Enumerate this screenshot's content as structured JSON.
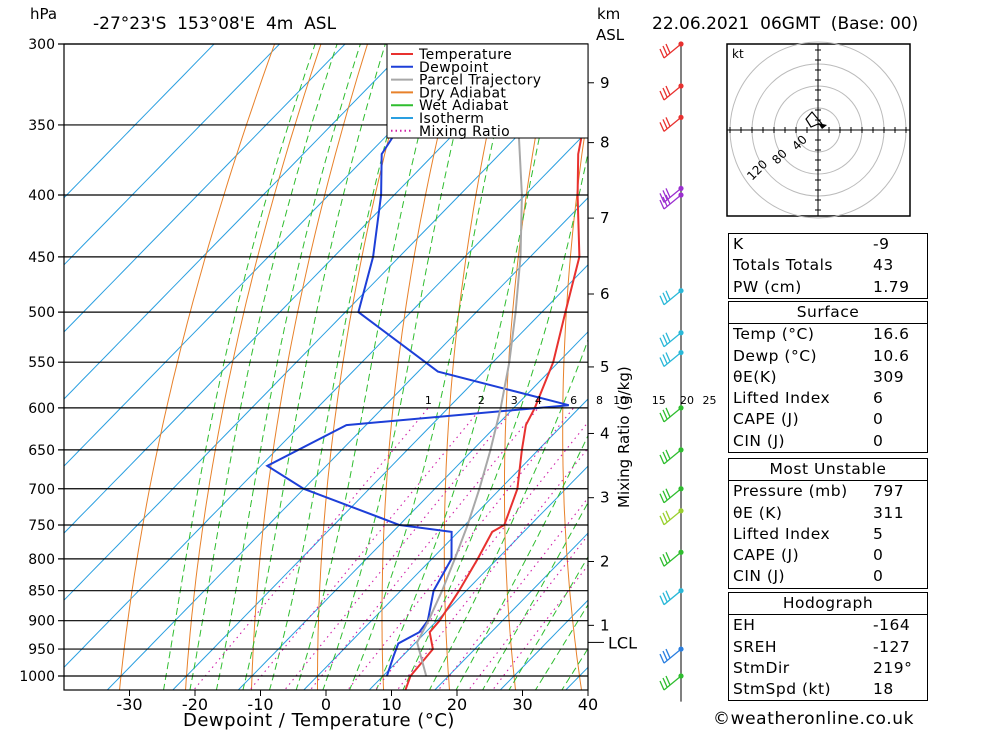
{
  "header": {
    "pressure_unit": "hPa",
    "location": "-27°23'S  153°08'E  4m  ASL",
    "height_unit_top": "km",
    "height_unit_bottom": "ASL",
    "datetime": "22.06.2021  06GMT  (Base: 00)"
  },
  "chart_data": {
    "type": "line",
    "title": "",
    "xlabel": "Dewpoint / Temperature (°C)",
    "ylabel": "hPa",
    "y_scale": "log-pressure",
    "xlim": [
      -40,
      40
    ],
    "ylim": [
      1050,
      300
    ],
    "x_ticks": [
      -30,
      -20,
      -10,
      0,
      10,
      20,
      30,
      40
    ],
    "pressure_levels": [
      300,
      350,
      400,
      450,
      500,
      550,
      600,
      650,
      700,
      750,
      800,
      850,
      900,
      950,
      1000
    ],
    "km_ticks": [
      {
        "km": "9",
        "p": 323
      },
      {
        "km": "8",
        "p": 362
      },
      {
        "km": "7",
        "p": 418
      },
      {
        "km": "6",
        "p": 483
      },
      {
        "km": "5",
        "p": 555
      },
      {
        "km": "4",
        "p": 630
      },
      {
        "km": "3",
        "p": 712
      },
      {
        "km": "2",
        "p": 804
      },
      {
        "km": "1",
        "p": 908
      }
    ],
    "lcl": {
      "label": "LCL",
      "p": 938
    },
    "mixing_ratio_axis_label": "Mixing Ratio (g/kg)",
    "mixing_ratio_labels": [
      "1",
      "2",
      "3",
      "4",
      "6",
      "8",
      "10",
      "15",
      "20",
      "25"
    ],
    "series": [
      {
        "name": "Temperature",
        "color": "#e8312f",
        "points": [
          [
            1050,
            16.6
          ],
          [
            1000,
            14.2
          ],
          [
            950,
            13.6
          ],
          [
            920,
            10.6
          ],
          [
            900,
            10.4
          ],
          [
            850,
            8.9
          ],
          [
            800,
            7.0
          ],
          [
            760,
            5.2
          ],
          [
            750,
            6.0
          ],
          [
            700,
            2.6
          ],
          [
            650,
            -2.5
          ],
          [
            620,
            -5.6
          ],
          [
            600,
            -6.8
          ],
          [
            550,
            -10.8
          ],
          [
            500,
            -16.4
          ],
          [
            450,
            -22.5
          ],
          [
            400,
            -32.0
          ],
          [
            370,
            -38.0
          ],
          [
            350,
            -41.5
          ],
          [
            300,
            -51.0
          ]
        ]
      },
      {
        "name": "Dewpoint",
        "color": "#1d3fd8",
        "points": [
          [
            1000,
            10.6
          ],
          [
            960,
            8.5
          ],
          [
            940,
            7.5
          ],
          [
            920,
            9.0
          ],
          [
            900,
            8.6
          ],
          [
            850,
            5.0
          ],
          [
            800,
            3.0
          ],
          [
            760,
            -1.0
          ],
          [
            750,
            -10.0
          ],
          [
            700,
            -30.0
          ],
          [
            670,
            -39.0
          ],
          [
            620,
            -33.0
          ],
          [
            597,
            -2.0
          ],
          [
            560,
            -27.0
          ],
          [
            500,
            -48.0
          ],
          [
            450,
            -54.0
          ],
          [
            400,
            -62.0
          ],
          [
            370,
            -68.0
          ],
          [
            330,
            -71.0
          ],
          [
            300,
            -75.0
          ]
        ]
      },
      {
        "name": "Parcel Trajectory",
        "color": "#a8a8a8",
        "points": [
          [
            1000,
            16.6
          ],
          [
            938,
            10.2
          ],
          [
            900,
            8.7
          ],
          [
            850,
            6.3
          ],
          [
            800,
            3.5
          ],
          [
            750,
            0.4
          ],
          [
            700,
            -3.2
          ],
          [
            650,
            -7.3
          ],
          [
            600,
            -12.0
          ],
          [
            550,
            -17.5
          ],
          [
            500,
            -24.0
          ],
          [
            450,
            -31.5
          ],
          [
            400,
            -40.5
          ],
          [
            350,
            -51.5
          ],
          [
            320,
            -59.0
          ]
        ]
      }
    ],
    "legend": [
      "Temperature",
      "Dewpoint",
      "Parcel Trajectory",
      "Dry Adiabat",
      "Wet Adiabat",
      "Isotherm",
      "Mixing Ratio"
    ],
    "legend_position": "top-right",
    "background_line_colors": {
      "dry_adiabat": "#e8812a",
      "wet_adiabat": "#2fbd2f",
      "isotherm": "#2a9fe0",
      "mixing_ratio": "#d020a8"
    },
    "wind_profile": [
      {
        "p": 300,
        "color": "#e8312f"
      },
      {
        "p": 325,
        "color": "#e8312f"
      },
      {
        "p": 345,
        "color": "#e8312f"
      },
      {
        "p": 395,
        "color": "#9b2fd0"
      },
      {
        "p": 400,
        "color": "#9b2fd0"
      },
      {
        "p": 480,
        "color": "#2ab8d8"
      },
      {
        "p": 520,
        "color": "#2ab8d8"
      },
      {
        "p": 540,
        "color": "#2ab8d8"
      },
      {
        "p": 600,
        "color": "#2fbd2f"
      },
      {
        "p": 650,
        "color": "#2fbd2f"
      },
      {
        "p": 700,
        "color": "#2fbd2f"
      },
      {
        "p": 730,
        "color": "#9ad02f"
      },
      {
        "p": 790,
        "color": "#2fbd2f"
      },
      {
        "p": 850,
        "color": "#2ab8d8"
      },
      {
        "p": 950,
        "color": "#2a7fe0"
      },
      {
        "p": 1000,
        "color": "#2fbd2f"
      }
    ]
  },
  "hodograph": {
    "unit": "kt",
    "ring_labels": [
      "40",
      "80",
      "120"
    ]
  },
  "indices": {
    "rows": [
      {
        "label": "K",
        "value": "-9"
      },
      {
        "label": "Totals Totals",
        "value": "43"
      },
      {
        "label": "PW (cm)",
        "value": "1.79"
      }
    ]
  },
  "surface": {
    "title": "Surface",
    "rows": [
      {
        "label": "Temp (°C)",
        "value": "16.6"
      },
      {
        "label": "Dewp (°C)",
        "value": "10.6"
      },
      {
        "label": "θE(K)",
        "value": "309"
      },
      {
        "label": "Lifted Index",
        "value": "6"
      },
      {
        "label": "CAPE (J)",
        "value": "0"
      },
      {
        "label": "CIN (J)",
        "value": "0"
      }
    ]
  },
  "most_unstable": {
    "title": "Most Unstable",
    "rows": [
      {
        "label": "Pressure (mb)",
        "value": "797"
      },
      {
        "label": "θE (K)",
        "value": "311"
      },
      {
        "label": "Lifted Index",
        "value": "5"
      },
      {
        "label": "CAPE (J)",
        "value": "0"
      },
      {
        "label": "CIN (J)",
        "value": "0"
      }
    ]
  },
  "hodograph_stats": {
    "title": "Hodograph",
    "rows": [
      {
        "label": "EH",
        "value": "-164"
      },
      {
        "label": "SREH",
        "value": "-127"
      },
      {
        "label": "StmDir",
        "value": "219°"
      },
      {
        "label": "StmSpd (kt)",
        "value": "18"
      }
    ]
  },
  "footer": {
    "copyright_symbol": "©",
    "site": "weatheronline.co.uk"
  }
}
